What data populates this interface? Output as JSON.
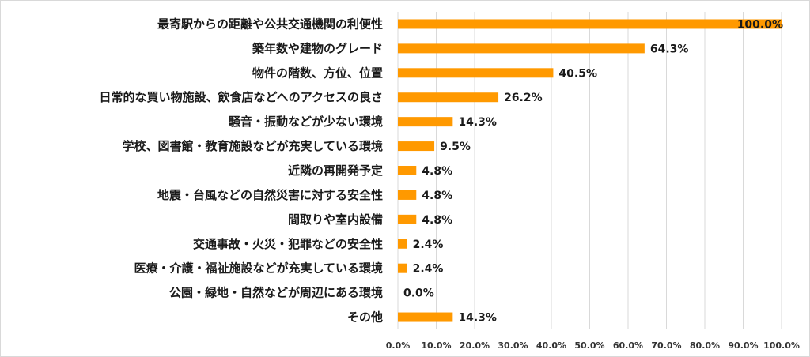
{
  "chart_data": {
    "type": "bar",
    "orientation": "horizontal",
    "categories": [
      "最寄駅からの距離や公共交通機関の利便性",
      "築年数や建物のグレード",
      "物件の階数、方位、位置",
      "日常的な買い物施設、飲食店などへのアクセスの良さ",
      "騒音・振動などが少ない環境",
      "学校、図書館・教育施設などが充実している環境",
      "近隣の再開発予定",
      "地震・台風などの自然災害に対する安全性",
      "間取りや室内設備",
      "交通事故・火災・犯罪などの安全性",
      "医療・介護・福祉施設などが充実している環境",
      "公園・緑地・自然などが周辺にある環境",
      "その他"
    ],
    "values": [
      100.0,
      64.3,
      40.5,
      26.2,
      14.3,
      9.5,
      4.8,
      4.8,
      4.8,
      2.4,
      2.4,
      0.0,
      14.3
    ],
    "data_labels": [
      "100.0%",
      "64.3%",
      "40.5%",
      "26.2%",
      "14.3%",
      "9.5%",
      "4.8%",
      "4.8%",
      "4.8%",
      "2.4%",
      "2.4%",
      "0.0%",
      "14.3%"
    ],
    "xlim": [
      0,
      100
    ],
    "x_ticks": [
      "0.0%",
      "10.0%",
      "20.0%",
      "30.0%",
      "40.0%",
      "50.0%",
      "60.0%",
      "70.0%",
      "80.0%",
      "90.0%",
      "100.0%"
    ],
    "grid": "vertical",
    "legend": "none",
    "title": "",
    "xlabel": "",
    "ylabel": "",
    "bar_color": "#FF9900",
    "grid_color": "#d9d9d9"
  }
}
